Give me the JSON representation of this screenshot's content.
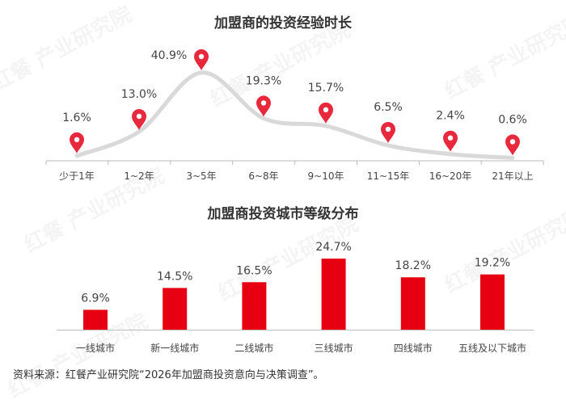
{
  "watermark": "红餐产业研究院",
  "colors": {
    "marker": "#e8283c",
    "bar": "#e60012",
    "line": "#d9d9d9",
    "axis": "#bbbbbb"
  },
  "chart_data": [
    {
      "type": "line",
      "title": "加盟商的投资经验时长",
      "categories": [
        "少于1年",
        "1~2年",
        "3~5年",
        "6~8年",
        "9~10年",
        "11~15年",
        "16~20年",
        "21年以上"
      ],
      "values": [
        1.6,
        13.0,
        40.9,
        19.3,
        15.7,
        6.5,
        2.4,
        0.6
      ],
      "labels": [
        "1.6%",
        "13.0%",
        "40.9%",
        "19.3%",
        "15.7%",
        "6.5%",
        "2.4%",
        "0.6%"
      ],
      "marker": "map-pin",
      "grid": false
    },
    {
      "type": "bar",
      "title": "加盟商投资城市等级分布",
      "categories": [
        "一线城市",
        "新一线城市",
        "二线城市",
        "三线城市",
        "四线城市",
        "五线及以下城市"
      ],
      "values": [
        6.9,
        14.5,
        16.5,
        24.7,
        18.2,
        19.2
      ],
      "labels": [
        "6.9%",
        "14.5%",
        "16.5%",
        "24.7%",
        "18.2%",
        "19.2%"
      ],
      "grid": false
    }
  ],
  "source": "资料来源：红餐产业研究院“2026年加盟商投资意向与决策调查”。"
}
